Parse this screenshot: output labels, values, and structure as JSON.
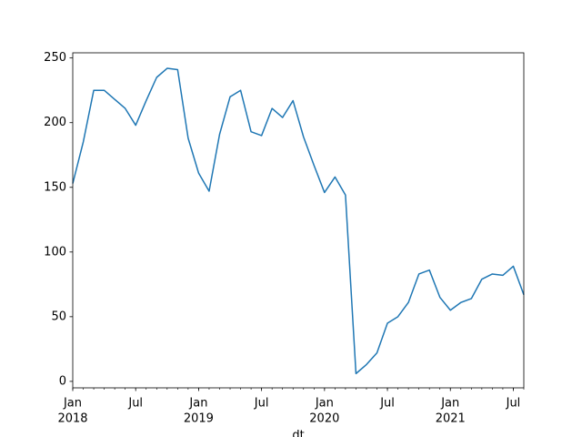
{
  "chart_data": {
    "type": "line",
    "xlabel": "dt",
    "x": [
      "2018-01",
      "2018-02",
      "2018-03",
      "2018-04",
      "2018-05",
      "2018-06",
      "2018-07",
      "2018-08",
      "2018-09",
      "2018-10",
      "2018-11",
      "2018-12",
      "2019-01",
      "2019-02",
      "2019-03",
      "2019-04",
      "2019-05",
      "2019-06",
      "2019-07",
      "2019-08",
      "2019-09",
      "2019-10",
      "2019-11",
      "2019-12",
      "2020-01",
      "2020-02",
      "2020-03",
      "2020-04",
      "2020-05",
      "2020-06",
      "2020-07",
      "2020-08",
      "2020-09",
      "2020-10",
      "2020-11",
      "2020-12",
      "2021-01",
      "2021-02",
      "2021-03",
      "2021-04",
      "2021-05",
      "2021-06",
      "2021-07",
      "2021-08"
    ],
    "series": [
      {
        "color": "#1f77b4",
        "values": [
          153,
          185,
          225,
          225,
          218,
          211,
          198,
          217,
          235,
          242,
          241,
          188,
          161,
          147,
          191,
          220,
          225,
          193,
          190,
          211,
          204,
          217,
          189,
          167,
          146,
          158,
          144,
          6,
          13,
          22,
          45,
          50,
          61,
          83,
          86,
          65,
          55,
          61,
          64,
          79,
          83,
          82,
          89,
          67
        ]
      }
    ],
    "xlim": [
      "2018-01",
      "2021-08"
    ],
    "xticks": [
      {
        "value": "2018-01",
        "label": "Jan"
      },
      {
        "value": "2018-07",
        "label": "Jul"
      },
      {
        "value": "2019-01",
        "label": "Jan"
      },
      {
        "value": "2019-07",
        "label": "Jul"
      },
      {
        "value": "2020-01",
        "label": "Jan"
      },
      {
        "value": "2020-07",
        "label": "Jul"
      },
      {
        "value": "2021-01",
        "label": "Jan"
      },
      {
        "value": "2021-07",
        "label": "Jul"
      }
    ],
    "xtick_years": [
      {
        "value": "2018-01",
        "label": "2018"
      },
      {
        "value": "2019-01",
        "label": "2019"
      },
      {
        "value": "2020-01",
        "label": "2020"
      },
      {
        "value": "2021-01",
        "label": "2021"
      }
    ],
    "ylim": [
      -5,
      254
    ],
    "yticks": [
      0,
      50,
      100,
      150,
      200,
      250
    ]
  }
}
